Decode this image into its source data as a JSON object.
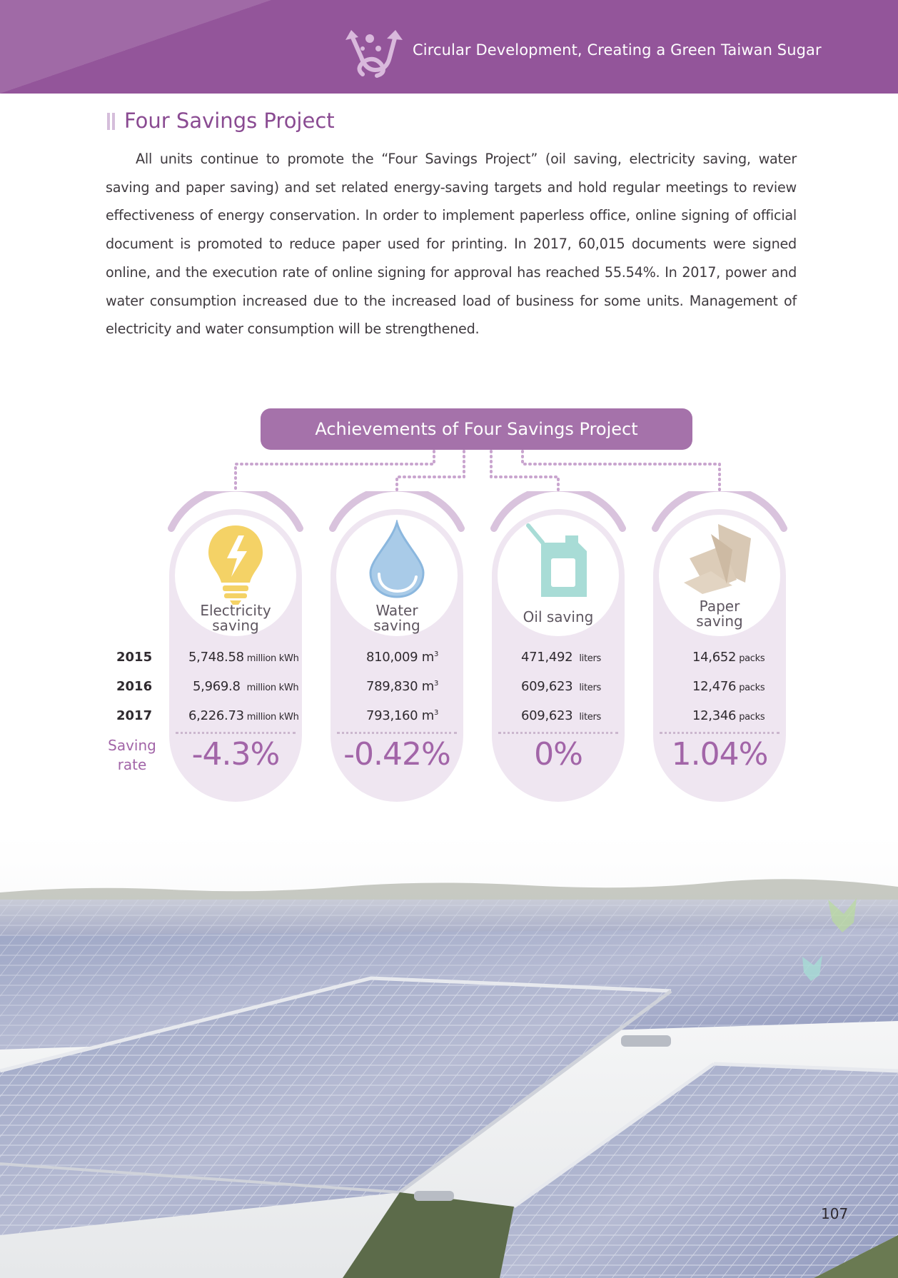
{
  "header": {
    "title": "Circular Development, Creating a Green Taiwan Sugar",
    "brand_color": "#93559a"
  },
  "section": {
    "title": "Four Savings Project",
    "body": "All units continue to promote the “Four Savings Project” (oil saving, electricity saving, water saving and paper saving) and set related energy-saving targets and hold regular meetings to review effectiveness of energy conservation. In order to implement paperless office, online signing of official document is promoted to reduce paper used for printing. In 2017, 60,015 documents were signed online, and the execution rate of online signing for approval has reached 55.54%. In 2017, power and water consumption increased due to the increased load of business for some units. Management of electricity and water consumption will be strengthened."
  },
  "infographic": {
    "title": "Achievements of Four Savings Project",
    "years": [
      "2015",
      "2016",
      "2017"
    ],
    "rate_label": [
      "Saving",
      "rate"
    ],
    "columns": [
      {
        "label": [
          "Electricity",
          "saving"
        ],
        "icon": "lightbulb-icon",
        "values": [
          "5,748.58",
          "5,969.8",
          "6,226.73"
        ],
        "unit": "million kWh",
        "rate": "-4.3%"
      },
      {
        "label": [
          "Water",
          "saving"
        ],
        "icon": "water-drop-icon",
        "values": [
          "810,009",
          "789,830",
          "793,160"
        ],
        "unit": "m",
        "unit_sup": "3",
        "rate": "-0.42%"
      },
      {
        "label": [
          "Oil saving"
        ],
        "icon": "fuel-can-icon",
        "values": [
          "471,492",
          "609,623",
          "609,623"
        ],
        "unit": "liters",
        "rate": "0%"
      },
      {
        "label": [
          "Paper",
          "saving"
        ],
        "icon": "paper-stack-icon",
        "values": [
          "14,652",
          "12,476",
          "12,346"
        ],
        "unit": "packs",
        "rate": "1.04%"
      }
    ]
  },
  "page_number": "107"
}
